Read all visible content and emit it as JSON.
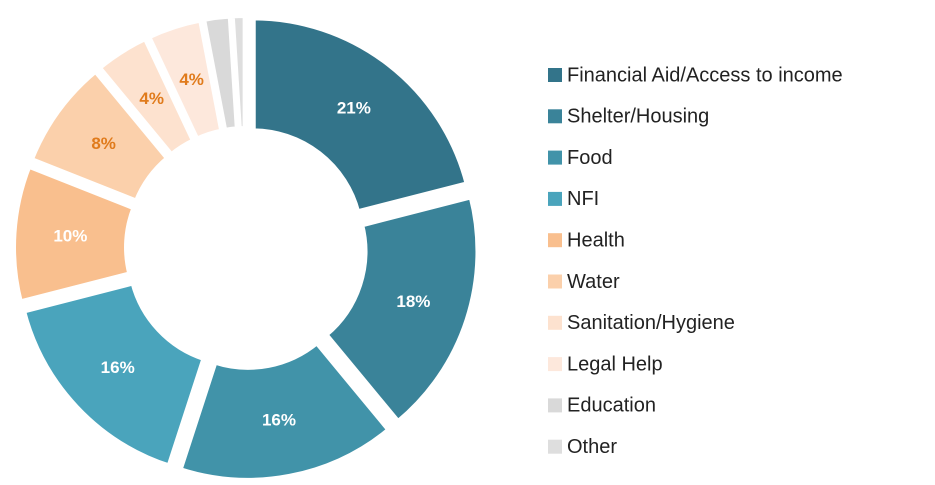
{
  "chart_data": {
    "type": "donut",
    "categories": [
      "Financial Aid/Access to income",
      "Shelter/Housing",
      "Food",
      "NFI",
      "Health",
      "Water",
      "Sanitation/Hygiene",
      "Legal Help",
      "Education",
      "Other"
    ],
    "values": [
      21,
      18,
      16,
      16,
      10,
      8,
      4,
      4,
      2,
      1
    ],
    "value_labels": [
      "21%",
      "18%",
      "16%",
      "16%",
      "10%",
      "8%",
      "4%",
      "4%",
      null,
      null
    ],
    "colors": [
      "#33748a",
      "#3a8399",
      "#4193a9",
      "#4aa4bc",
      "#f9bf8e",
      "#fbd0ab",
      "#fde2cf",
      "#fde8dc",
      "#d9d9d9",
      "#dedede"
    ],
    "label_colors": [
      "#ffffff",
      "#ffffff",
      "#ffffff",
      "#ffffff",
      "#ffffff",
      "#e07b1c",
      "#e07b1c",
      "#e07b1c",
      null,
      null
    ],
    "legend": "right"
  }
}
